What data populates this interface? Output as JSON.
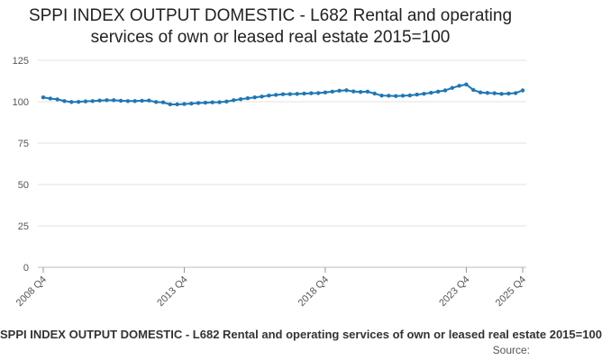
{
  "chart_data": {
    "type": "line",
    "title": "SPPI INDEX OUTPUT DOMESTIC - L682 Rental and operating services of own or leased real estate 2015=100",
    "xlabel": "",
    "ylabel": "",
    "ylim": [
      0,
      125
    ],
    "yticks": [
      0,
      25,
      50,
      75,
      100,
      125
    ],
    "grid": true,
    "legend_position": "bottom",
    "x_tick_labels": [
      "2008 Q4",
      "2013 Q4",
      "2018 Q4",
      "2023 Q4",
      "2025 Q4"
    ],
    "x_tick_indices": [
      0,
      20,
      40,
      60,
      68
    ],
    "x": [
      "2008 Q4",
      "2009 Q1",
      "2009 Q2",
      "2009 Q3",
      "2009 Q4",
      "2010 Q1",
      "2010 Q2",
      "2010 Q3",
      "2010 Q4",
      "2011 Q1",
      "2011 Q2",
      "2011 Q3",
      "2011 Q4",
      "2012 Q1",
      "2012 Q2",
      "2012 Q3",
      "2012 Q4",
      "2013 Q1",
      "2013 Q2",
      "2013 Q3",
      "2013 Q4",
      "2014 Q1",
      "2014 Q2",
      "2014 Q3",
      "2014 Q4",
      "2015 Q1",
      "2015 Q2",
      "2015 Q3",
      "2015 Q4",
      "2016 Q1",
      "2016 Q2",
      "2016 Q3",
      "2016 Q4",
      "2017 Q1",
      "2017 Q2",
      "2017 Q3",
      "2017 Q4",
      "2018 Q1",
      "2018 Q2",
      "2018 Q3",
      "2018 Q4",
      "2019 Q1",
      "2019 Q2",
      "2019 Q3",
      "2019 Q4",
      "2020 Q1",
      "2020 Q2",
      "2020 Q3",
      "2020 Q4",
      "2021 Q1",
      "2021 Q2",
      "2021 Q3",
      "2021 Q4",
      "2022 Q1",
      "2022 Q2",
      "2022 Q3",
      "2022 Q4",
      "2023 Q1",
      "2023 Q2",
      "2023 Q3",
      "2023 Q4",
      "2024 Q1",
      "2024 Q2",
      "2024 Q3",
      "2024 Q4",
      "2025 Q1",
      "2025 Q2",
      "2025 Q3",
      "2025 Q4"
    ],
    "series": [
      {
        "name": "SPPI INDEX OUTPUT DOMESTIC - L682 Rental and operating services of own or leased real estate 2015=100",
        "color": "#1f77b4",
        "values": [
          102.6,
          101.9,
          101.4,
          100.4,
          99.8,
          99.9,
          100.2,
          100.4,
          100.7,
          100.9,
          100.9,
          100.6,
          100.4,
          100.4,
          100.6,
          100.7,
          99.8,
          99.6,
          98.4,
          98.4,
          98.6,
          98.9,
          99.2,
          99.4,
          99.6,
          99.7,
          100.1,
          100.9,
          101.5,
          102.1,
          102.6,
          103.1,
          103.7,
          104.1,
          104.5,
          104.6,
          104.7,
          104.9,
          105.1,
          105.2,
          105.6,
          106.1,
          106.6,
          106.9,
          106.2,
          105.9,
          106.1,
          104.9,
          103.7,
          103.6,
          103.4,
          103.6,
          103.8,
          104.3,
          104.8,
          105.4,
          106.1,
          106.8,
          108.3,
          109.6,
          110.4,
          107.1,
          105.6,
          105.3,
          105.1,
          104.7,
          104.9,
          105.2,
          106.8
        ]
      }
    ]
  },
  "legend": {
    "label": "SPPI INDEX OUTPUT DOMESTIC - L682 Rental and operating services of own or leased real estate 2015=100"
  },
  "source_label": "Source:"
}
